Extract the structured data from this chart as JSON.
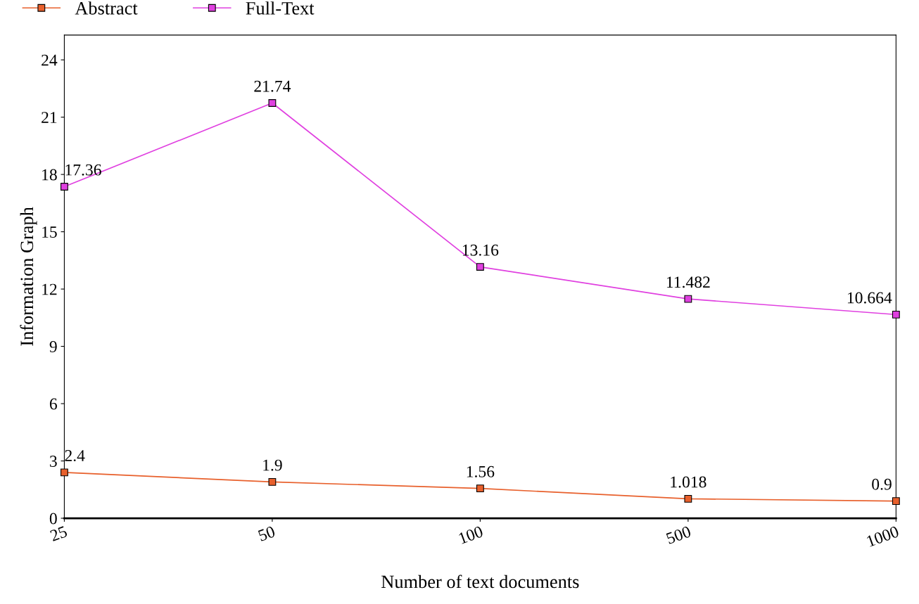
{
  "chart_data": {
    "type": "line",
    "xlabel": "Number of text documents",
    "ylabel": "Information Graph",
    "categories": [
      "25",
      "50",
      "100",
      "500",
      "1000"
    ],
    "series": [
      {
        "name": "Abstract",
        "color": "#e8602c",
        "values": [
          2.4,
          1.9,
          1.56,
          1.018,
          0.9
        ]
      },
      {
        "name": "Full-Text",
        "color": "#e040e0",
        "values": [
          17.36,
          21.74,
          13.16,
          11.482,
          10.664
        ]
      }
    ],
    "ylim": [
      0,
      25.3
    ],
    "yticks": [
      0,
      3,
      6,
      9,
      12,
      15,
      18,
      21,
      24
    ],
    "data_labels": true,
    "legend": "top left",
    "grid": false,
    "marker": "square",
    "line_style": "solid"
  }
}
